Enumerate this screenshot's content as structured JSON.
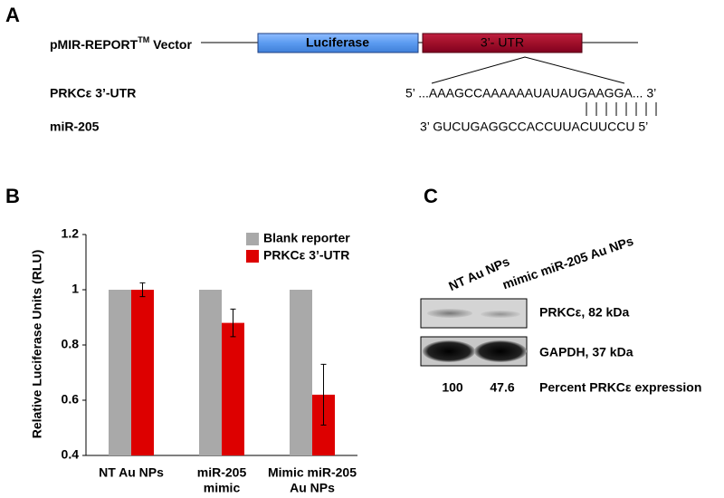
{
  "panel_a": {
    "label": "A",
    "vector_label": "pMIR-REPORT",
    "vector_label_sup": "TM",
    "vector_label_suffix": " Vector",
    "luciferase": "Luciferase",
    "utr": "3’- UTR",
    "target_label": "PRKCε 3’-UTR",
    "target_sequence": "5’ ...AAAGCCAAAAAAUAUAUGAAGGA... 3’",
    "mirna_label": "miR-205",
    "mirna_sequence": "3’ GUCUGAGGCCACCUUACUUCCU 5’"
  },
  "chart_data": {
    "type": "bar",
    "panel_label": "B",
    "y_label": "Relative Luciferase Units (RLU)",
    "categories": [
      [
        "NT Au NPs"
      ],
      [
        "miR-205",
        "mimic"
      ],
      [
        "Mimic miR-205",
        "Au NPs"
      ]
    ],
    "series": [
      {
        "name": "Blank reporter",
        "color": "#a9a9a9",
        "values": [
          1,
          1,
          1
        ]
      },
      {
        "name": "PRKCε 3’-UTR",
        "color": "#dd0000",
        "values": [
          1.0,
          0.88,
          0.62
        ],
        "errors": [
          0.025,
          0.05,
          0.11
        ]
      }
    ],
    "ylim": [
      0.4,
      1.2
    ],
    "yticks": [
      0.4,
      0.6,
      0.8,
      1,
      1.2
    ],
    "legend": "top-right"
  },
  "panel_c": {
    "label": "C",
    "lanes": [
      "NT Au NPs",
      "mimic miR-205 Au NPs"
    ],
    "bands": [
      "PRKCε, 82 kDa",
      "GAPDH, 37 kDa"
    ],
    "percent_values": [
      100,
      47.6
    ],
    "percent_label": "Percent PRKCε expression"
  }
}
